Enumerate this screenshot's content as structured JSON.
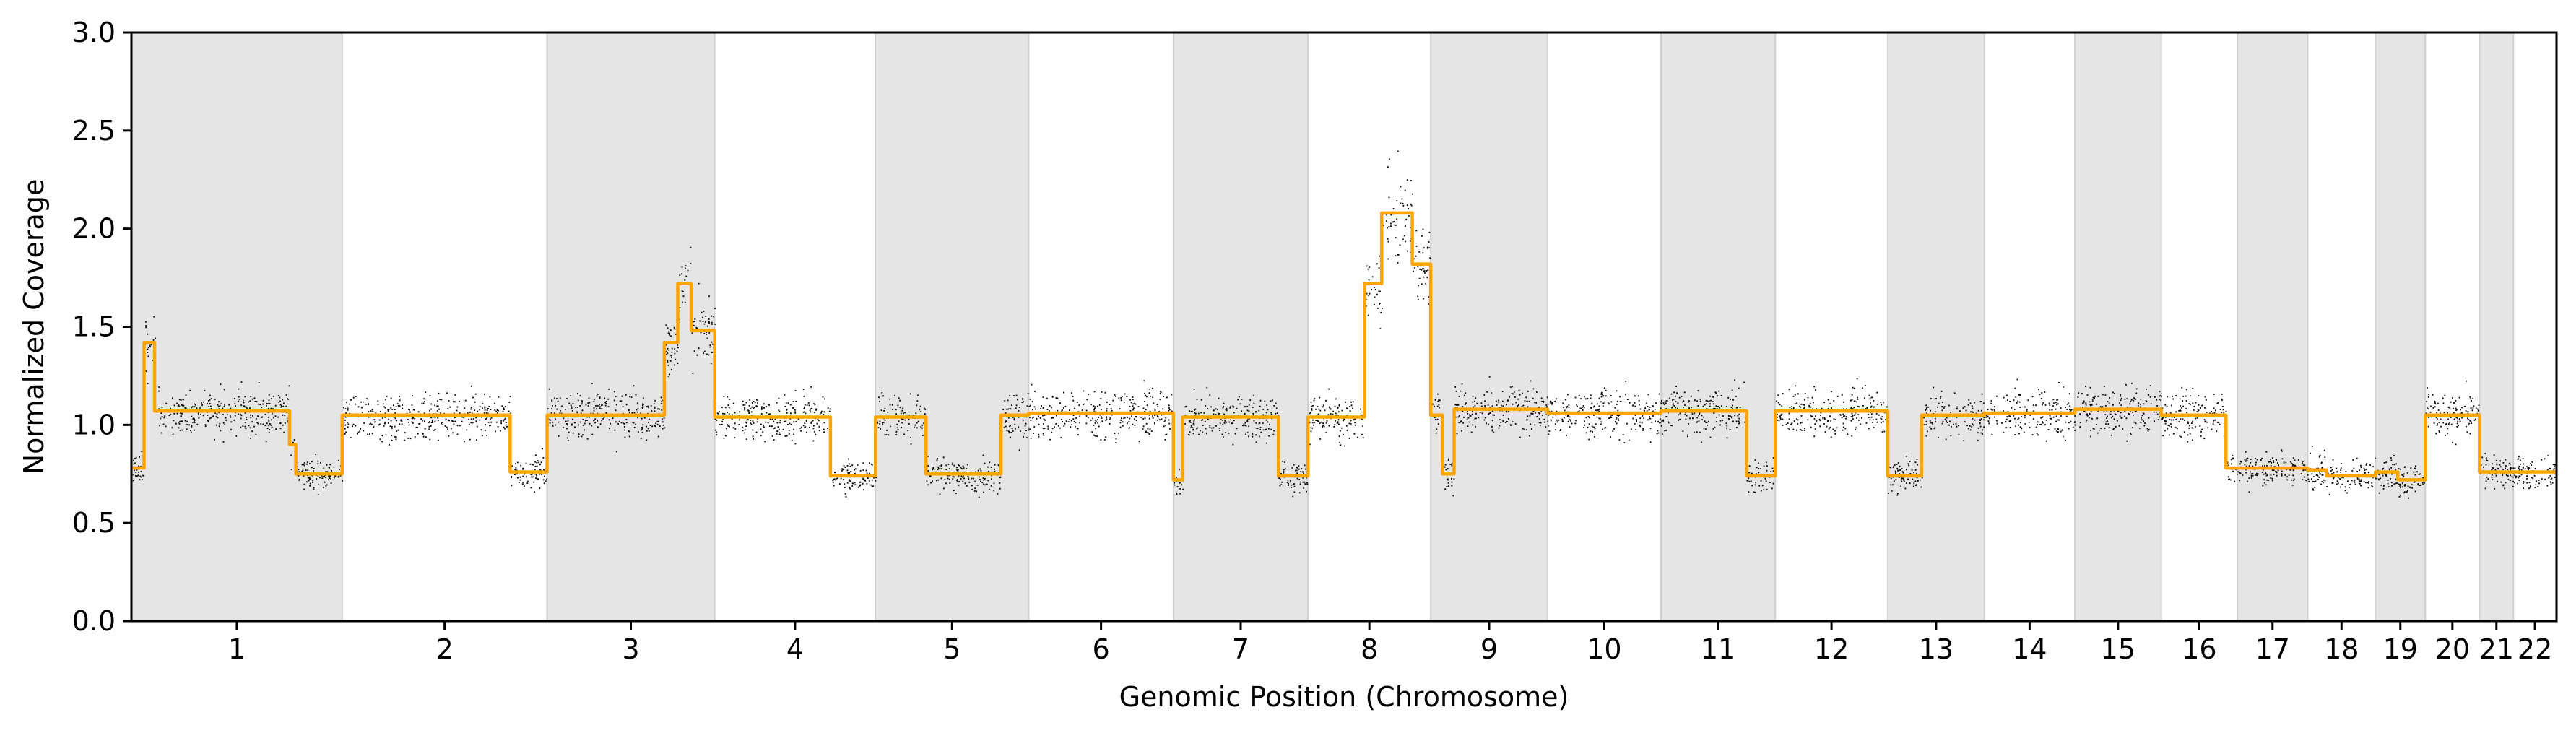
{
  "chart_data": {
    "type": "scatter",
    "title": "",
    "xlabel": "Genomic Position (Chromosome)",
    "ylabel": "Normalized Coverage",
    "ylim": [
      0.0,
      3.0
    ],
    "yticks": [
      "0.0",
      "0.5",
      "1.0",
      "1.5",
      "2.0",
      "2.5",
      "3.0"
    ],
    "grid": false,
    "alternating_shading": true,
    "colors": {
      "points": "#000000",
      "segments": "#ffa500",
      "shade": "#e5e5e5"
    },
    "series": [
      {
        "type": "scatter",
        "description_role": "bin coverage points"
      },
      {
        "type": "line",
        "description_role": "segmented copy number"
      }
    ],
    "chromosomes": [
      {
        "label": "1",
        "length": 249,
        "shaded": true,
        "segments": [
          [
            0,
            0.06,
            0.78
          ],
          [
            0.06,
            0.11,
            1.42
          ],
          [
            0.11,
            0.75,
            1.07
          ],
          [
            0.75,
            0.78,
            0.9
          ],
          [
            0.78,
            1.0,
            0.75
          ]
        ]
      },
      {
        "label": "2",
        "length": 242,
        "shaded": false,
        "segments": [
          [
            0,
            0.82,
            1.05
          ],
          [
            0.82,
            1.0,
            0.76
          ]
        ]
      },
      {
        "label": "3",
        "length": 198,
        "shaded": true,
        "segments": [
          [
            0,
            0.7,
            1.05
          ],
          [
            0.7,
            0.78,
            1.42
          ],
          [
            0.78,
            0.86,
            1.72
          ],
          [
            0.86,
            1.0,
            1.48
          ]
        ]
      },
      {
        "label": "4",
        "length": 190,
        "shaded": false,
        "segments": [
          [
            0,
            0.72,
            1.04
          ],
          [
            0.72,
            1.0,
            0.74
          ]
        ]
      },
      {
        "label": "5",
        "length": 181,
        "shaded": true,
        "segments": [
          [
            0,
            0.33,
            1.04
          ],
          [
            0.33,
            0.82,
            0.75
          ],
          [
            0.82,
            1.0,
            1.05
          ]
        ]
      },
      {
        "label": "6",
        "length": 171,
        "shaded": false,
        "segments": [
          [
            0,
            1.0,
            1.06
          ]
        ]
      },
      {
        "label": "7",
        "length": 159,
        "shaded": true,
        "segments": [
          [
            0,
            0.07,
            0.72
          ],
          [
            0.07,
            0.78,
            1.04
          ],
          [
            0.78,
            1.0,
            0.74
          ]
        ]
      },
      {
        "label": "8",
        "length": 145,
        "shaded": false,
        "segments": [
          [
            0,
            0.46,
            1.04
          ],
          [
            0.46,
            0.6,
            1.72
          ],
          [
            0.6,
            0.85,
            2.08
          ],
          [
            0.85,
            1.0,
            1.82
          ]
        ]
      },
      {
        "label": "9",
        "length": 138,
        "shaded": true,
        "segments": [
          [
            0,
            0.1,
            1.05
          ],
          [
            0.1,
            0.2,
            0.75
          ],
          [
            0.2,
            1.0,
            1.08
          ]
        ]
      },
      {
        "label": "10",
        "length": 134,
        "shaded": false,
        "segments": [
          [
            0,
            1.0,
            1.06
          ]
        ]
      },
      {
        "label": "11",
        "length": 135,
        "shaded": true,
        "segments": [
          [
            0,
            0.75,
            1.07
          ],
          [
            0.75,
            1.0,
            0.74
          ]
        ]
      },
      {
        "label": "12",
        "length": 133,
        "shaded": false,
        "segments": [
          [
            0,
            1.0,
            1.07
          ]
        ]
      },
      {
        "label": "13",
        "length": 114,
        "shaded": true,
        "segments": [
          [
            0,
            0.35,
            0.74
          ],
          [
            0.35,
            1.0,
            1.05
          ]
        ]
      },
      {
        "label": "14",
        "length": 107,
        "shaded": false,
        "segments": [
          [
            0,
            1.0,
            1.06
          ]
        ]
      },
      {
        "label": "15",
        "length": 102,
        "shaded": true,
        "segments": [
          [
            0,
            1.0,
            1.08
          ]
        ]
      },
      {
        "label": "16",
        "length": 90,
        "shaded": false,
        "segments": [
          [
            0,
            0.85,
            1.05
          ],
          [
            0.85,
            1.0,
            0.78
          ]
        ]
      },
      {
        "label": "17",
        "length": 83,
        "shaded": true,
        "segments": [
          [
            0,
            1.0,
            0.78
          ]
        ]
      },
      {
        "label": "18",
        "length": 80,
        "shaded": false,
        "segments": [
          [
            0,
            0.28,
            0.77
          ],
          [
            0.28,
            1.0,
            0.74
          ]
        ]
      },
      {
        "label": "19",
        "length": 59,
        "shaded": true,
        "segments": [
          [
            0,
            0.45,
            0.76
          ],
          [
            0.45,
            1.0,
            0.72
          ]
        ]
      },
      {
        "label": "20",
        "length": 64,
        "shaded": false,
        "segments": [
          [
            0,
            1.0,
            1.05
          ]
        ]
      },
      {
        "label": "21",
        "length": 40,
        "shaded": true,
        "segments": [
          [
            0,
            1.0,
            0.76
          ]
        ]
      },
      {
        "label": "22",
        "length": 51,
        "shaded": false,
        "segments": [
          [
            0,
            1.0,
            0.76
          ]
        ]
      }
    ]
  }
}
